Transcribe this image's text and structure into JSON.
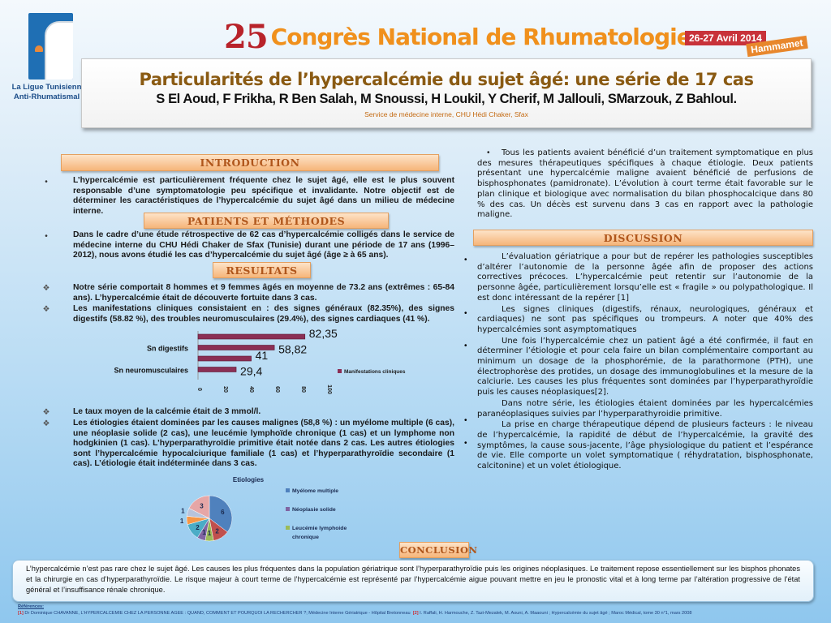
{
  "logo": {
    "line1": "La Ligue Tunisienn",
    "line2": "Anti-Rhumatismal"
  },
  "congress": {
    "number": "25",
    "name": "Congrès National de Rhumatologie",
    "date": "26-27 Avril 2014",
    "place": "Hammamet"
  },
  "title": {
    "main": "Particularités de l’hypercalcémie du sujet âgé: une série de 17 cas",
    "authors": "S El Aoud, F Frikha,  R Ben Salah, M Snoussi,  H Loukil,  Y Cherif, M Jallouli, SMarzouk, Z Bahloul.",
    "service": "Service de médecine interne, CHU Hédi Chaker, Sfax"
  },
  "introduction": {
    "heading": "INTRODUCTION",
    "text": "L’hypercalcémie est particulièrement fréquente chez le sujet âgé, elle est le plus souvent responsable d’une symptomatologie peu spécifique et invalidante. Notre objectif est de déterminer les caractéristiques de l’hypercalcémie du sujet âgé dans un milieu de médecine interne."
  },
  "methods": {
    "heading": "PATIENTS ET MÉTHODES",
    "text": "Dans le cadre d’une  étude  rétrospective  de  62 cas d’hypercalcémie colligés dans le service de médecine interne du CHU Hédi Chaker de Sfax (Tunisie) durant une période de 17 ans (1996–2012), nous avons étudié les cas d’hypercalcémie du sujet âgé  (âge ≥ à 65 ans)."
  },
  "results": {
    "heading": "RESULTATS",
    "items": [
      "Notre série comportait 8 hommes et 9 femmes âgés en moyenne  de 73.2 ans (extrêmes : 65-84 ans). L’hypercalcémie était  de découverte fortuite dans 3 cas.",
      "Les manifestations cliniques consistaient en : des signes généraux (82.35%), des signes digestifs (58.82 %), des troubles  neuromusculaires (29.4%), des signes cardiaques (41 %).",
      "Le taux moyen de la calcémie était de 3 mmol/l.",
      "Les étiologies étaient dominées par les causes malignes (58,8 %) : un myélome multiple (6 cas), une néoplasie solide (2 cas), une leucémie lymphoïde chronique  (1 cas) et un lymphome non hodgkinien (1 cas). L’hyperparathyroïdie primitive était notée dans 2 cas.  Les autres étiologies sont l’hypercalcémie hypocalciurique familiale (1 cas) et l’hyperparathyroïdie secondaire (1 cas). L’étiologie était indéterminée dans 3 cas."
    ]
  },
  "chart_data": [
    {
      "type": "bar",
      "orientation": "horizontal",
      "categories": [
        "",
        "Sn digestifs",
        "",
        "Sn neuromusculaires"
      ],
      "series": [
        {
          "name": "Manifestations cliniques",
          "values": [
            82.35,
            58.82,
            41,
            29.4
          ],
          "color": "#8b2f55"
        }
      ],
      "data_labels": [
        "82,35",
        "58,82",
        "41",
        "29,4"
      ],
      "xlim": [
        0,
        100
      ],
      "xticks": [
        "0",
        "20",
        "40",
        "60",
        "80",
        "100"
      ],
      "legend": "right"
    },
    {
      "type": "pie",
      "title": "Etiologies",
      "values": [
        6,
        2,
        1,
        1,
        2,
        1,
        1,
        3
      ],
      "colors": [
        "#4f81bd",
        "#c0504d",
        "#9bbb59",
        "#8064a2",
        "#4bacc6",
        "#f79646",
        "#b7c3dc",
        "#e6a6a6"
      ],
      "legend_entries": [
        {
          "name": "Myélome multiple",
          "color": "#4f81bd"
        },
        {
          "name": "Néoplasie solide",
          "color": "#8064a2"
        },
        {
          "name": "Leucémie lymphoide chronique",
          "color": "#9bbb59"
        }
      ],
      "legend": "right"
    }
  ],
  "right": {
    "treatment": "Tous les patients avaient bénéficié d’un traitement symptomatique en plus des mesures thérapeutiques spécifiques à chaque étiologie. Deux patients présentant une  hypercalcémie maligne avaient bénéficié de perfusions de bisphosphonates (pamidronate).  L’évolution à court terme était favorable sur le plan clinique et biologique avec normalisation du bilan phosphocalcique dans 80 % des cas. Un décès est survenu dans 3 cas en rapport avec la pathologie maligne.",
    "discussion_heading": "DISCUSSION",
    "discussion": [
      "L’évaluation gériatrique a pour but de repérer les pathologies susceptibles d’altérer l’autonomie de la personne âgée afin de proposer des actions correctives précoces. L’hypercalcémie peut retentir sur l’autonomie de la personne âgée, particulièrement lorsqu’elle est « fragile » ou polypathologique. Il est donc intéressant de la repérer [1]",
      "Les signes cliniques (digestifs, rénaux, neurologiques, généraux et cardiaques) ne sont pas spécifiques ou trompeurs. A noter que 40% des hypercalcémies sont asymptomatiques",
      "Une fois l’hypercalcémie chez un patient âgé a été confirmée, il faut en déterminer l’étiologie et pour cela faire un bilan complémentaire comportant au minimum un dosage de la phosphorémie, de la parathormone (PTH), une électrophorèse des protides, un dosage des immunoglobulines et la mesure de la calciurie. Les causes les plus fréquentes sont dominées par l’hyperparathyroïdie puis les causes néoplasiques[2].",
      "Dans notre série, les étiologies étaient dominées par les hypercalcémies paranéoplasiques suivies par l’hyperparathyroidie primitive.",
      "La prise en charge thérapeutique dépend de plusieurs facteurs : le niveau de l’hypercalcémie, la rapidité de début de l’hypercalcémie, la gravité des symptômes, la cause sous-jacente, l’âge physiologique du patient et l’espérance de vie. Elle comporte un volet symptomatique ( réhydratation, bisphosphonate, calcitonine) et un volet étiologique."
    ]
  },
  "conclusion": {
    "heading": "CONCLUSION",
    "text": "L’hypercalcémie n’est pas rare chez le sujet âgé. Les causes les plus fréquentes dans la population gériatrique sont l’hyperparathyroïdie puis les origines néoplasiques. Le traitement repose essentiellement sur les bisphos phonates et la chirurgie en cas d’hyperparathyroïdie. Le risque majeur à court terme de l’hypercalcémie est représenté par l’hypercalcémie aigue pouvant mettre en jeu le pronostic vital et à long terme par l’altération progressive de l’état général et l’insuffisance rénale chronique."
  },
  "references": {
    "label": "Références:",
    "items": [
      {
        "num": "[1]",
        "text": "Dr Dominique CHAVANNE, L’HYPERCALCEMIE CHEZ LA PERSONNE AGEE : QUAND, COMMENT ET POURQUOI LA RECHERCHER ?; Médecine Interne Gériatrique - Hôpital Bretonneau"
      },
      {
        "num": "[2]",
        "text": "I. Raffali, H. Harmouche, Z. Tazi-Mezalek, M. Aouni, A. Maaouni ; Hypercalcémie du sujet âgé ; Maroc Médical, tome 30 n°1, mars 2008"
      }
    ]
  }
}
